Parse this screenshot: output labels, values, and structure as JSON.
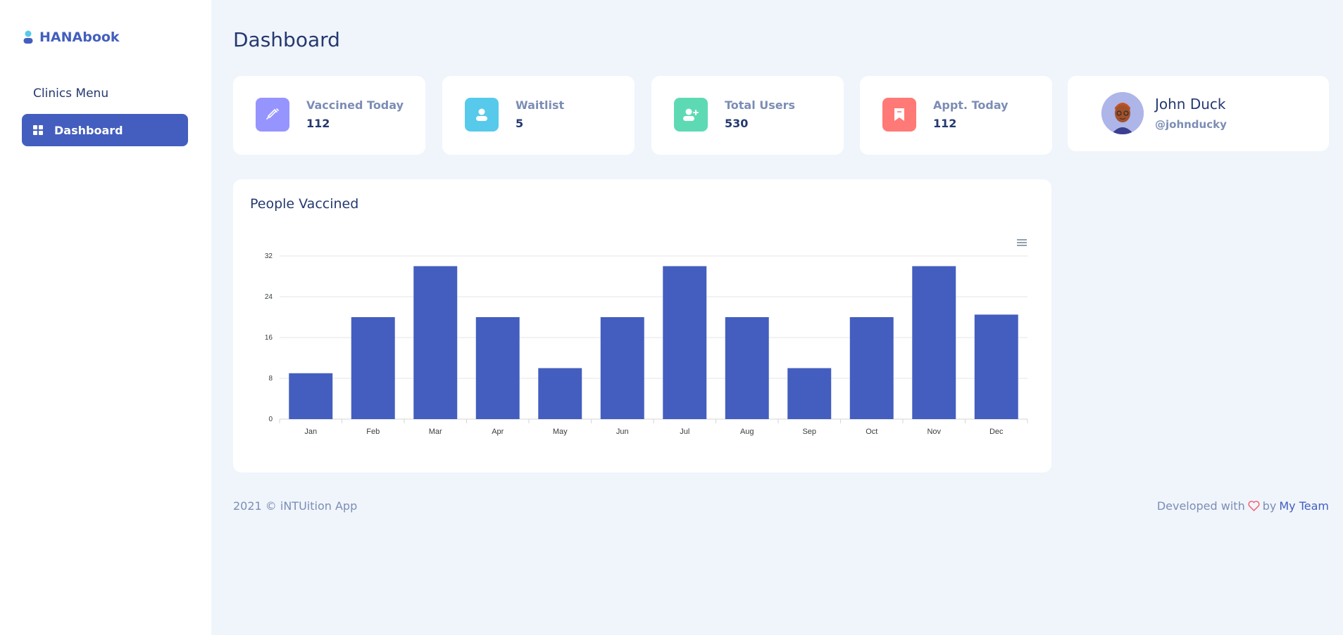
{
  "sidebar": {
    "brand": "HANAbook",
    "menu_title": "Clinics Menu",
    "items": [
      {
        "label": "Dashboard",
        "icon": "grid-icon",
        "active": true
      }
    ]
  },
  "page": {
    "title": "Dashboard"
  },
  "stats": [
    {
      "label": "Vaccined Today",
      "value": "112",
      "icon": "syringe-icon",
      "color": "#9694ff"
    },
    {
      "label": "Waitlist",
      "value": "5",
      "icon": "user-icon",
      "color": "#57caeb"
    },
    {
      "label": "Total Users",
      "value": "530",
      "icon": "user-plus-icon",
      "color": "#5ddab4"
    },
    {
      "label": "Appt. Today",
      "value": "112",
      "icon": "bookmark-icon",
      "color": "#ff7976"
    }
  ],
  "profile": {
    "name": "John Duck",
    "handle": "@johnducky"
  },
  "chart_card": {
    "title": "People Vaccined"
  },
  "chart_data": {
    "type": "bar",
    "title": "People Vaccined",
    "categories": [
      "Jan",
      "Feb",
      "Mar",
      "Apr",
      "May",
      "Jun",
      "Jul",
      "Aug",
      "Sep",
      "Oct",
      "Nov",
      "Dec"
    ],
    "values": [
      9,
      20,
      30,
      20,
      10,
      20,
      30,
      20,
      10,
      20,
      30,
      20.5
    ],
    "yticks": [
      0,
      8,
      16,
      24,
      32
    ],
    "ylim": [
      0,
      32
    ],
    "grid": true,
    "xlabel": "",
    "ylabel": "",
    "color": "#435ebe"
  },
  "footer": {
    "left": "2021 © iNTUition App",
    "right_prefix": "Developed with",
    "right_by": "by",
    "right_link": "My Team"
  },
  "colors": {
    "accent": "#435ebe",
    "background": "#f0f5fc",
    "heart": "#f3616d"
  }
}
